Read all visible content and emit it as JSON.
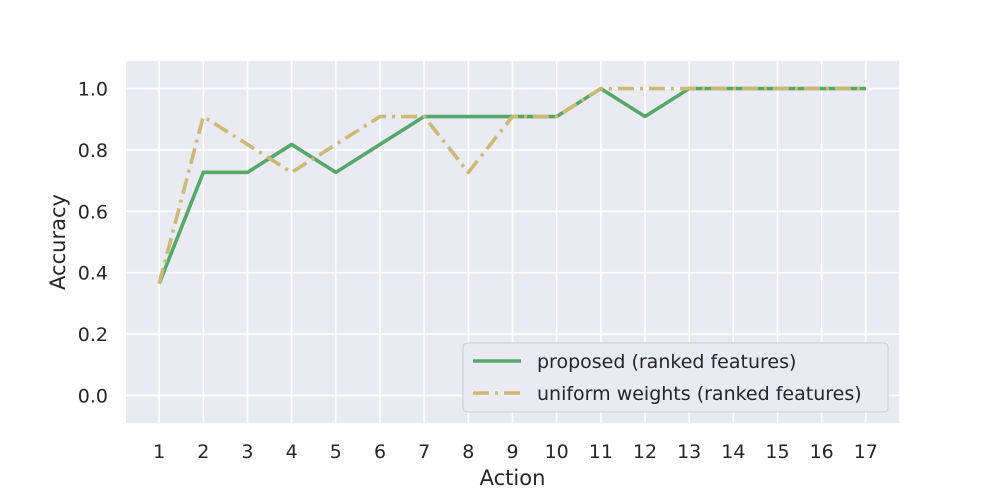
{
  "chart_data": {
    "type": "line",
    "title": "",
    "xlabel": "Action",
    "ylabel": "Accuracy",
    "x": [
      1,
      2,
      3,
      4,
      5,
      6,
      7,
      8,
      9,
      10,
      11,
      12,
      13,
      14,
      15,
      16,
      17
    ],
    "x_tick_labels": [
      "1",
      "2",
      "3",
      "4",
      "5",
      "6",
      "7",
      "8",
      "9",
      "10",
      "11",
      "12",
      "13",
      "14",
      "15",
      "16",
      "17"
    ],
    "xlim": [
      0.25,
      17.75
    ],
    "ylim": [
      -0.09,
      1.09
    ],
    "y_ticks": [
      0.0,
      0.2,
      0.4,
      0.6,
      0.8,
      1.0
    ],
    "y_tick_labels": [
      "0.0",
      "0.2",
      "0.4",
      "0.6",
      "0.8",
      "1.0"
    ],
    "grid": true,
    "background": "#eaeaf2",
    "legend_position": "lower-right",
    "series": [
      {
        "name": "proposed (ranked features)",
        "color": "#55a868",
        "line_style": "solid",
        "values": [
          0.364,
          0.727,
          0.727,
          0.818,
          0.727,
          0.818,
          0.909,
          0.909,
          0.909,
          0.909,
          1.0,
          0.909,
          1.0,
          1.0,
          1.0,
          1.0,
          1.0
        ]
      },
      {
        "name": "uniform weights (ranked features)",
        "color": "#ccb974",
        "line_style": "dash-dot",
        "values": [
          0.364,
          0.909,
          0.818,
          0.727,
          0.818,
          0.909,
          0.909,
          0.727,
          0.909,
          0.909,
          1.0,
          1.0,
          1.0,
          1.0,
          1.0,
          1.0,
          1.0
        ]
      }
    ]
  }
}
